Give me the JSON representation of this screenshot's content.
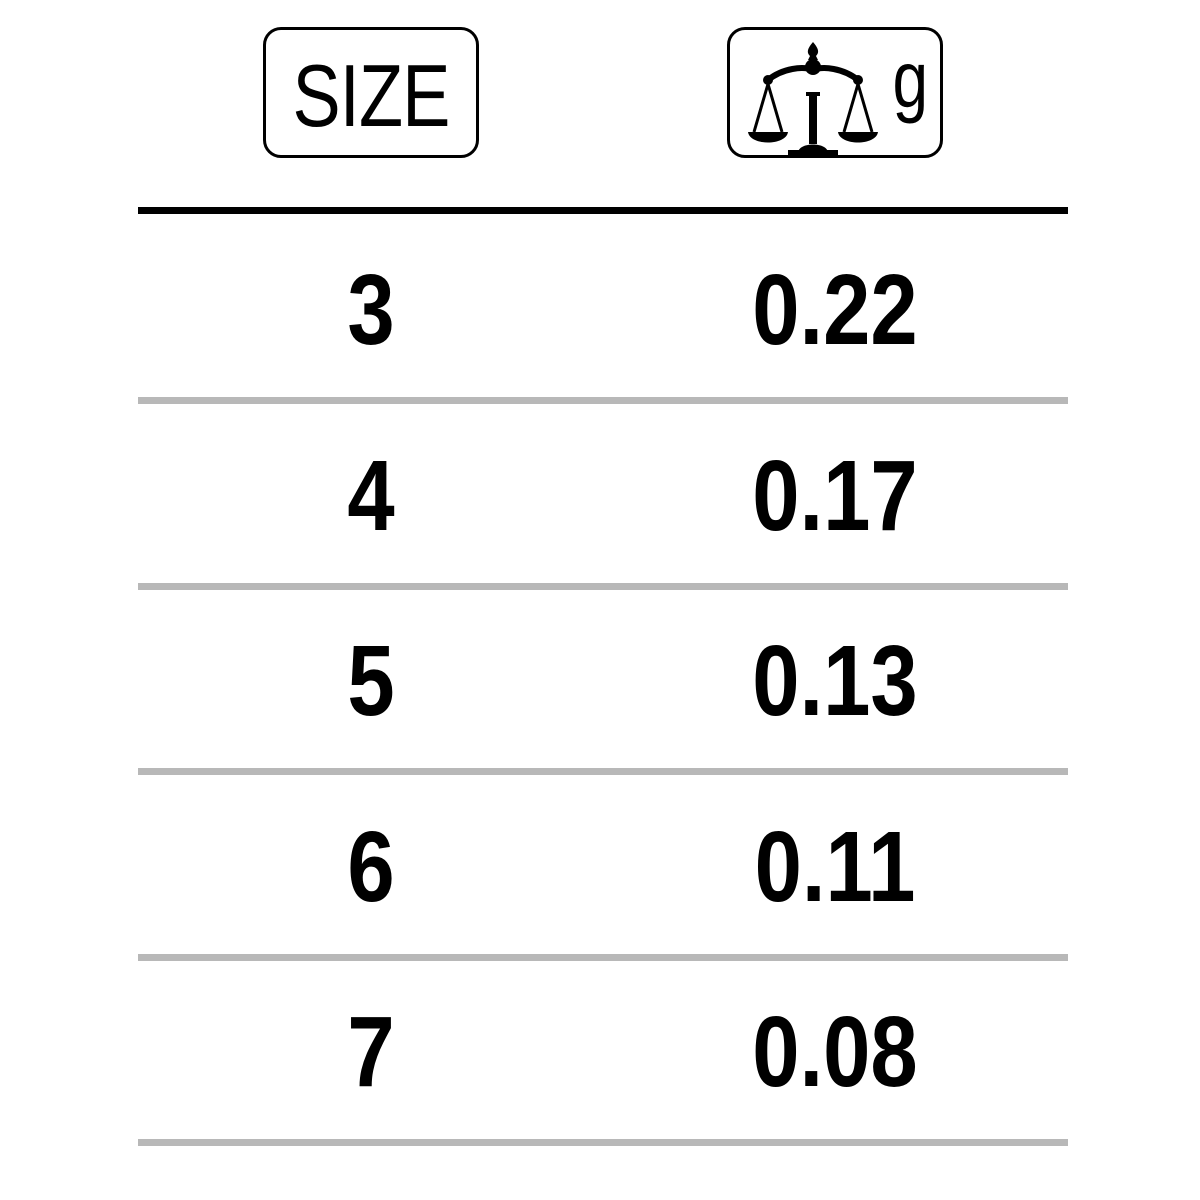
{
  "header": {
    "size_label": "SIZE",
    "weight_unit": "g",
    "weight_icon": "balance-scale-icon"
  },
  "rows": [
    {
      "size": "3",
      "weight": "0.22"
    },
    {
      "size": "4",
      "weight": "0.17"
    },
    {
      "size": "5",
      "weight": "0.13"
    },
    {
      "size": "6",
      "weight": "0.11"
    },
    {
      "size": "7",
      "weight": "0.08"
    }
  ],
  "colors": {
    "text": "#000000",
    "row_divider": "#b8b8b8"
  }
}
